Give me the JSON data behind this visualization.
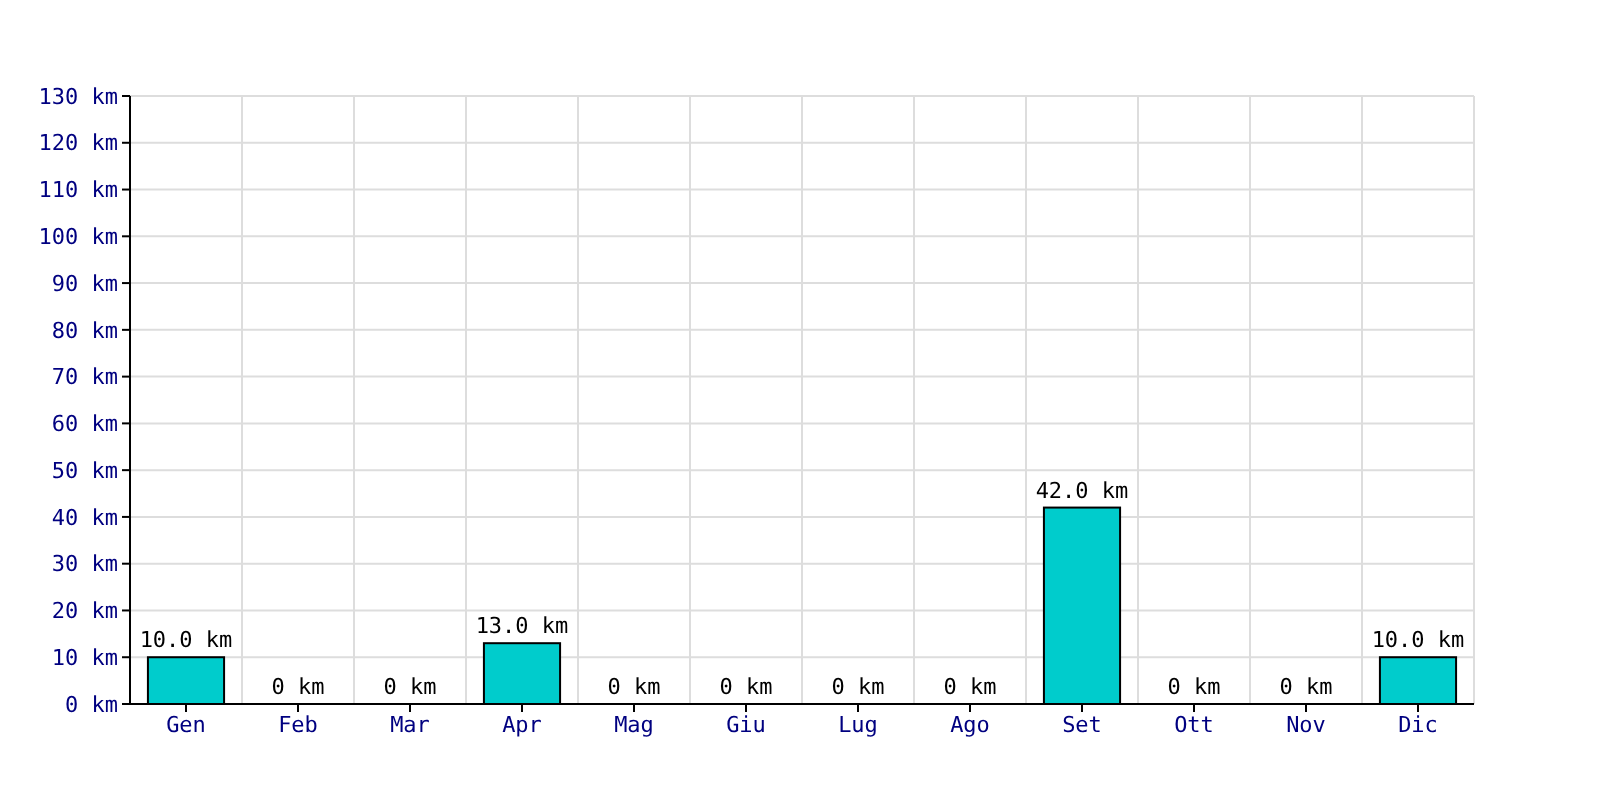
{
  "chart_data": {
    "type": "bar",
    "categories": [
      "Gen",
      "Feb",
      "Mar",
      "Apr",
      "Mag",
      "Giu",
      "Lug",
      "Ago",
      "Set",
      "Ott",
      "Nov",
      "Dic"
    ],
    "values": [
      10,
      0,
      0,
      13,
      0,
      0,
      0,
      0,
      42,
      0,
      0,
      10
    ],
    "value_labels": [
      "10.0 km",
      "0 km",
      "0 km",
      "13.0 km",
      "0 km",
      "0 km",
      "0 km",
      "0 km",
      "42.0 km",
      "0 km",
      "0 km",
      "10.0 km"
    ],
    "color": "#00cccc",
    "ylim": [
      0,
      130
    ],
    "yticks": [
      {
        "value": 0,
        "label": "0 km"
      },
      {
        "value": 10,
        "label": "10 km"
      },
      {
        "value": 20,
        "label": "20 km"
      },
      {
        "value": 30,
        "label": "30 km"
      },
      {
        "value": 40,
        "label": "40 km"
      },
      {
        "value": 50,
        "label": "50 km"
      },
      {
        "value": 60,
        "label": "60 km"
      },
      {
        "value": 70,
        "label": "70 km"
      },
      {
        "value": 80,
        "label": "80 km"
      },
      {
        "value": 90,
        "label": "90 km"
      },
      {
        "value": 100,
        "label": "100 km"
      },
      {
        "value": 110,
        "label": "110 km"
      },
      {
        "value": 120,
        "label": "120 km"
      },
      {
        "value": 130,
        "label": "130 km"
      }
    ],
    "grid": true
  }
}
